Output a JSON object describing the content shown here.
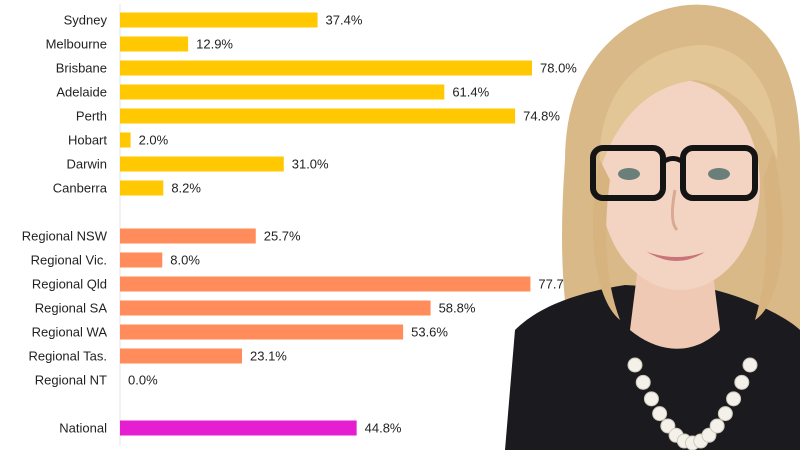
{
  "chart_data": {
    "type": "bar",
    "orientation": "horizontal",
    "xlim": [
      0,
      100
    ],
    "value_suffix": "%",
    "categories": [
      "Sydney",
      "Melbourne",
      "Brisbane",
      "Adelaide",
      "Perth",
      "Hobart",
      "Darwin",
      "Canberra",
      "Regional NSW",
      "Regional Vic.",
      "Regional Qld",
      "Regional SA",
      "Regional WA",
      "Regional Tas.",
      "Regional NT",
      "National"
    ],
    "values": [
      37.4,
      12.9,
      78.0,
      61.4,
      74.8,
      2.0,
      31.0,
      8.2,
      25.7,
      8.0,
      77.7,
      58.8,
      53.6,
      23.1,
      0.0,
      44.8
    ],
    "data_labels": [
      "37.4%",
      "12.9%",
      "78.0%",
      "61.4%",
      "74.8%",
      "2.0%",
      "31.0%",
      "8.2%",
      "25.7%",
      "8.0%",
      "77.7%",
      "58.8%",
      "53.6%",
      "23.1%",
      "0.0%",
      "44.8%"
    ],
    "groups": [
      "capital",
      "capital",
      "capital",
      "capital",
      "capital",
      "capital",
      "capital",
      "capital",
      "regional",
      "regional",
      "regional",
      "regional",
      "regional",
      "regional",
      "regional",
      "national"
    ],
    "group_colors": {
      "capital": "#FFC800",
      "regional": "#FF8C5A",
      "national": "#E61ED2"
    },
    "title": "",
    "xlabel": "",
    "ylabel": ""
  },
  "photo": {
    "subject": "woman-with-glasses-portrait"
  }
}
